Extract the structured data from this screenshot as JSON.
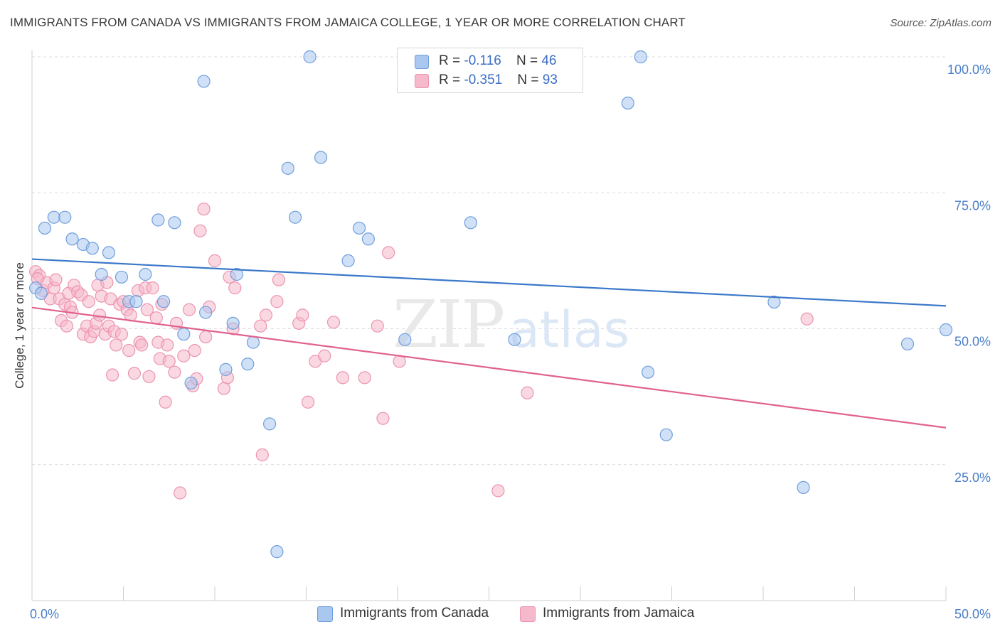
{
  "title": "IMMIGRANTS FROM CANADA VS IMMIGRANTS FROM JAMAICA COLLEGE, 1 YEAR OR MORE CORRELATION CHART",
  "source": "Source: ZipAtlas.com",
  "watermark": {
    "zip": "ZIP",
    "atlas": "atlas"
  },
  "colors": {
    "canada_fill": "#a9c7ef",
    "canada_stroke": "#6f9fdc",
    "canada_line": "#3b78c9",
    "jamaica_fill": "#f6b8cb",
    "jamaica_stroke": "#ec94b0",
    "jamaica_line": "#e0628e",
    "tick_text": "#4a7ec9",
    "grid": "#dcdcdc"
  },
  "legend": {
    "rows": [
      {
        "r_label": "R = ",
        "r_value": "-0.116",
        "n_label": "N = ",
        "n_value": "46"
      },
      {
        "r_label": "R = ",
        "r_value": "-0.351",
        "n_label": "N = ",
        "n_value": "93"
      }
    ]
  },
  "bottom_legend": [
    "Immigrants from Canada",
    "Immigrants from Jamaica"
  ],
  "chart_data": {
    "type": "scatter",
    "title": "IMMIGRANTS FROM CANADA VS IMMIGRANTS FROM JAMAICA COLLEGE, 1 YEAR OR MORE CORRELATION CHART",
    "xlabel": "",
    "ylabel": "College, 1 year or more",
    "xlim": [
      0,
      50
    ],
    "ylim": [
      0,
      100
    ],
    "x_tick_labels": [
      "0.0%",
      "50.0%"
    ],
    "y_ticks": [
      25,
      50,
      75,
      100
    ],
    "y_tick_labels": [
      "25.0%",
      "50.0%",
      "75.0%",
      "100.0%"
    ],
    "grid": true,
    "legend_placement": "top-center",
    "series": [
      {
        "name": "Immigrants from Canada",
        "R": -0.116,
        "N": 46,
        "trend": {
          "x": [
            0,
            50
          ],
          "y": [
            62.8,
            54.2
          ]
        },
        "points": [
          [
            0.2,
            57.5
          ],
          [
            0.7,
            68.5
          ],
          [
            1.2,
            70.5
          ],
          [
            1.8,
            70.5
          ],
          [
            2.2,
            66.5
          ],
          [
            2.8,
            65.5
          ],
          [
            3.3,
            64.8
          ],
          [
            3.8,
            60
          ],
          [
            4.2,
            64
          ],
          [
            4.9,
            59.5
          ],
          [
            5.3,
            55
          ],
          [
            5.7,
            55
          ],
          [
            6.2,
            60
          ],
          [
            6.9,
            70
          ],
          [
            7.2,
            55
          ],
          [
            7.8,
            69.5
          ],
          [
            8.3,
            49
          ],
          [
            8.7,
            40
          ],
          [
            9.4,
            95.5
          ],
          [
            9.5,
            53
          ],
          [
            10.6,
            42.5
          ],
          [
            11,
            51
          ],
          [
            11.2,
            60
          ],
          [
            11.8,
            43.5
          ],
          [
            12.1,
            47.5
          ],
          [
            13,
            32.5
          ],
          [
            13.4,
            9
          ],
          [
            14,
            79.5
          ],
          [
            14.4,
            70.5
          ],
          [
            15.2,
            100
          ],
          [
            15.8,
            81.5
          ],
          [
            17.3,
            62.5
          ],
          [
            17.9,
            68.5
          ],
          [
            18.4,
            66.5
          ],
          [
            20.4,
            48
          ],
          [
            24,
            69.5
          ],
          [
            26.4,
            48
          ],
          [
            32.6,
            91.5
          ],
          [
            33.3,
            100
          ],
          [
            33.7,
            42
          ],
          [
            34.7,
            30.5
          ],
          [
            40.6,
            54.9
          ],
          [
            42.2,
            20.8
          ],
          [
            47.9,
            47.2
          ],
          [
            50,
            49.8
          ],
          [
            0.5,
            56.5
          ]
        ]
      },
      {
        "name": "Immigrants from Jamaica",
        "R": -0.351,
        "N": 93,
        "trend": {
          "x": [
            0,
            50
          ],
          "y": [
            53.9,
            31.8
          ]
        },
        "points": [
          [
            0.2,
            60.5
          ],
          [
            0.4,
            59.8
          ],
          [
            0.6,
            57
          ],
          [
            0.8,
            58.5
          ],
          [
            1,
            55.5
          ],
          [
            1.2,
            57.5
          ],
          [
            1.3,
            59
          ],
          [
            1.5,
            55.5
          ],
          [
            1.6,
            51.5
          ],
          [
            1.8,
            54.5
          ],
          [
            1.9,
            50.5
          ],
          [
            2,
            56.5
          ],
          [
            2.1,
            54
          ],
          [
            2.2,
            53
          ],
          [
            2.3,
            58
          ],
          [
            2.5,
            56.8
          ],
          [
            2.7,
            56.2
          ],
          [
            2.8,
            49
          ],
          [
            3,
            50.5
          ],
          [
            3.1,
            55
          ],
          [
            3.2,
            48.5
          ],
          [
            3.4,
            49.5
          ],
          [
            3.5,
            51
          ],
          [
            3.6,
            58
          ],
          [
            3.7,
            52.5
          ],
          [
            3.8,
            56
          ],
          [
            4,
            49
          ],
          [
            4.1,
            58.5
          ],
          [
            4.2,
            50.5
          ],
          [
            4.3,
            55.5
          ],
          [
            4.4,
            41.5
          ],
          [
            4.5,
            49.5
          ],
          [
            4.6,
            47
          ],
          [
            4.8,
            54.5
          ],
          [
            4.9,
            49
          ],
          [
            5,
            55
          ],
          [
            5.2,
            53.5
          ],
          [
            5.3,
            46
          ],
          [
            5.4,
            52.5
          ],
          [
            5.6,
            41.8
          ],
          [
            5.8,
            57
          ],
          [
            5.9,
            47.5
          ],
          [
            6,
            47
          ],
          [
            6.2,
            57.5
          ],
          [
            6.3,
            53.5
          ],
          [
            6.4,
            41.2
          ],
          [
            6.6,
            57.5
          ],
          [
            6.8,
            52
          ],
          [
            6.9,
            47.5
          ],
          [
            7,
            44.5
          ],
          [
            7.1,
            54.5
          ],
          [
            7.3,
            36.5
          ],
          [
            7.4,
            47
          ],
          [
            7.5,
            44
          ],
          [
            7.8,
            42
          ],
          [
            7.9,
            51
          ],
          [
            8.1,
            19.8
          ],
          [
            8.3,
            45
          ],
          [
            8.6,
            53.5
          ],
          [
            8.8,
            39.5
          ],
          [
            8.9,
            46
          ],
          [
            9,
            40.8
          ],
          [
            9.2,
            68
          ],
          [
            9.4,
            72
          ],
          [
            9.5,
            48.5
          ],
          [
            9.7,
            54
          ],
          [
            10,
            62.5
          ],
          [
            10.5,
            39
          ],
          [
            10.7,
            41
          ],
          [
            10.8,
            59.5
          ],
          [
            11,
            50
          ],
          [
            11.1,
            57.5
          ],
          [
            12.5,
            50.5
          ],
          [
            12.6,
            26.8
          ],
          [
            12.8,
            52.5
          ],
          [
            13.4,
            55
          ],
          [
            13.5,
            59
          ],
          [
            14.6,
            51
          ],
          [
            14.8,
            52.5
          ],
          [
            15.1,
            36.5
          ],
          [
            15.5,
            44
          ],
          [
            16,
            45
          ],
          [
            16.5,
            51.2
          ],
          [
            17,
            41
          ],
          [
            18.2,
            41
          ],
          [
            18.9,
            50.5
          ],
          [
            19.2,
            33.5
          ],
          [
            19.5,
            64
          ],
          [
            20.1,
            44
          ],
          [
            25.5,
            20.2
          ],
          [
            27.1,
            38.2
          ],
          [
            42.4,
            51.8
          ],
          [
            0.3,
            59.2
          ]
        ]
      }
    ]
  }
}
